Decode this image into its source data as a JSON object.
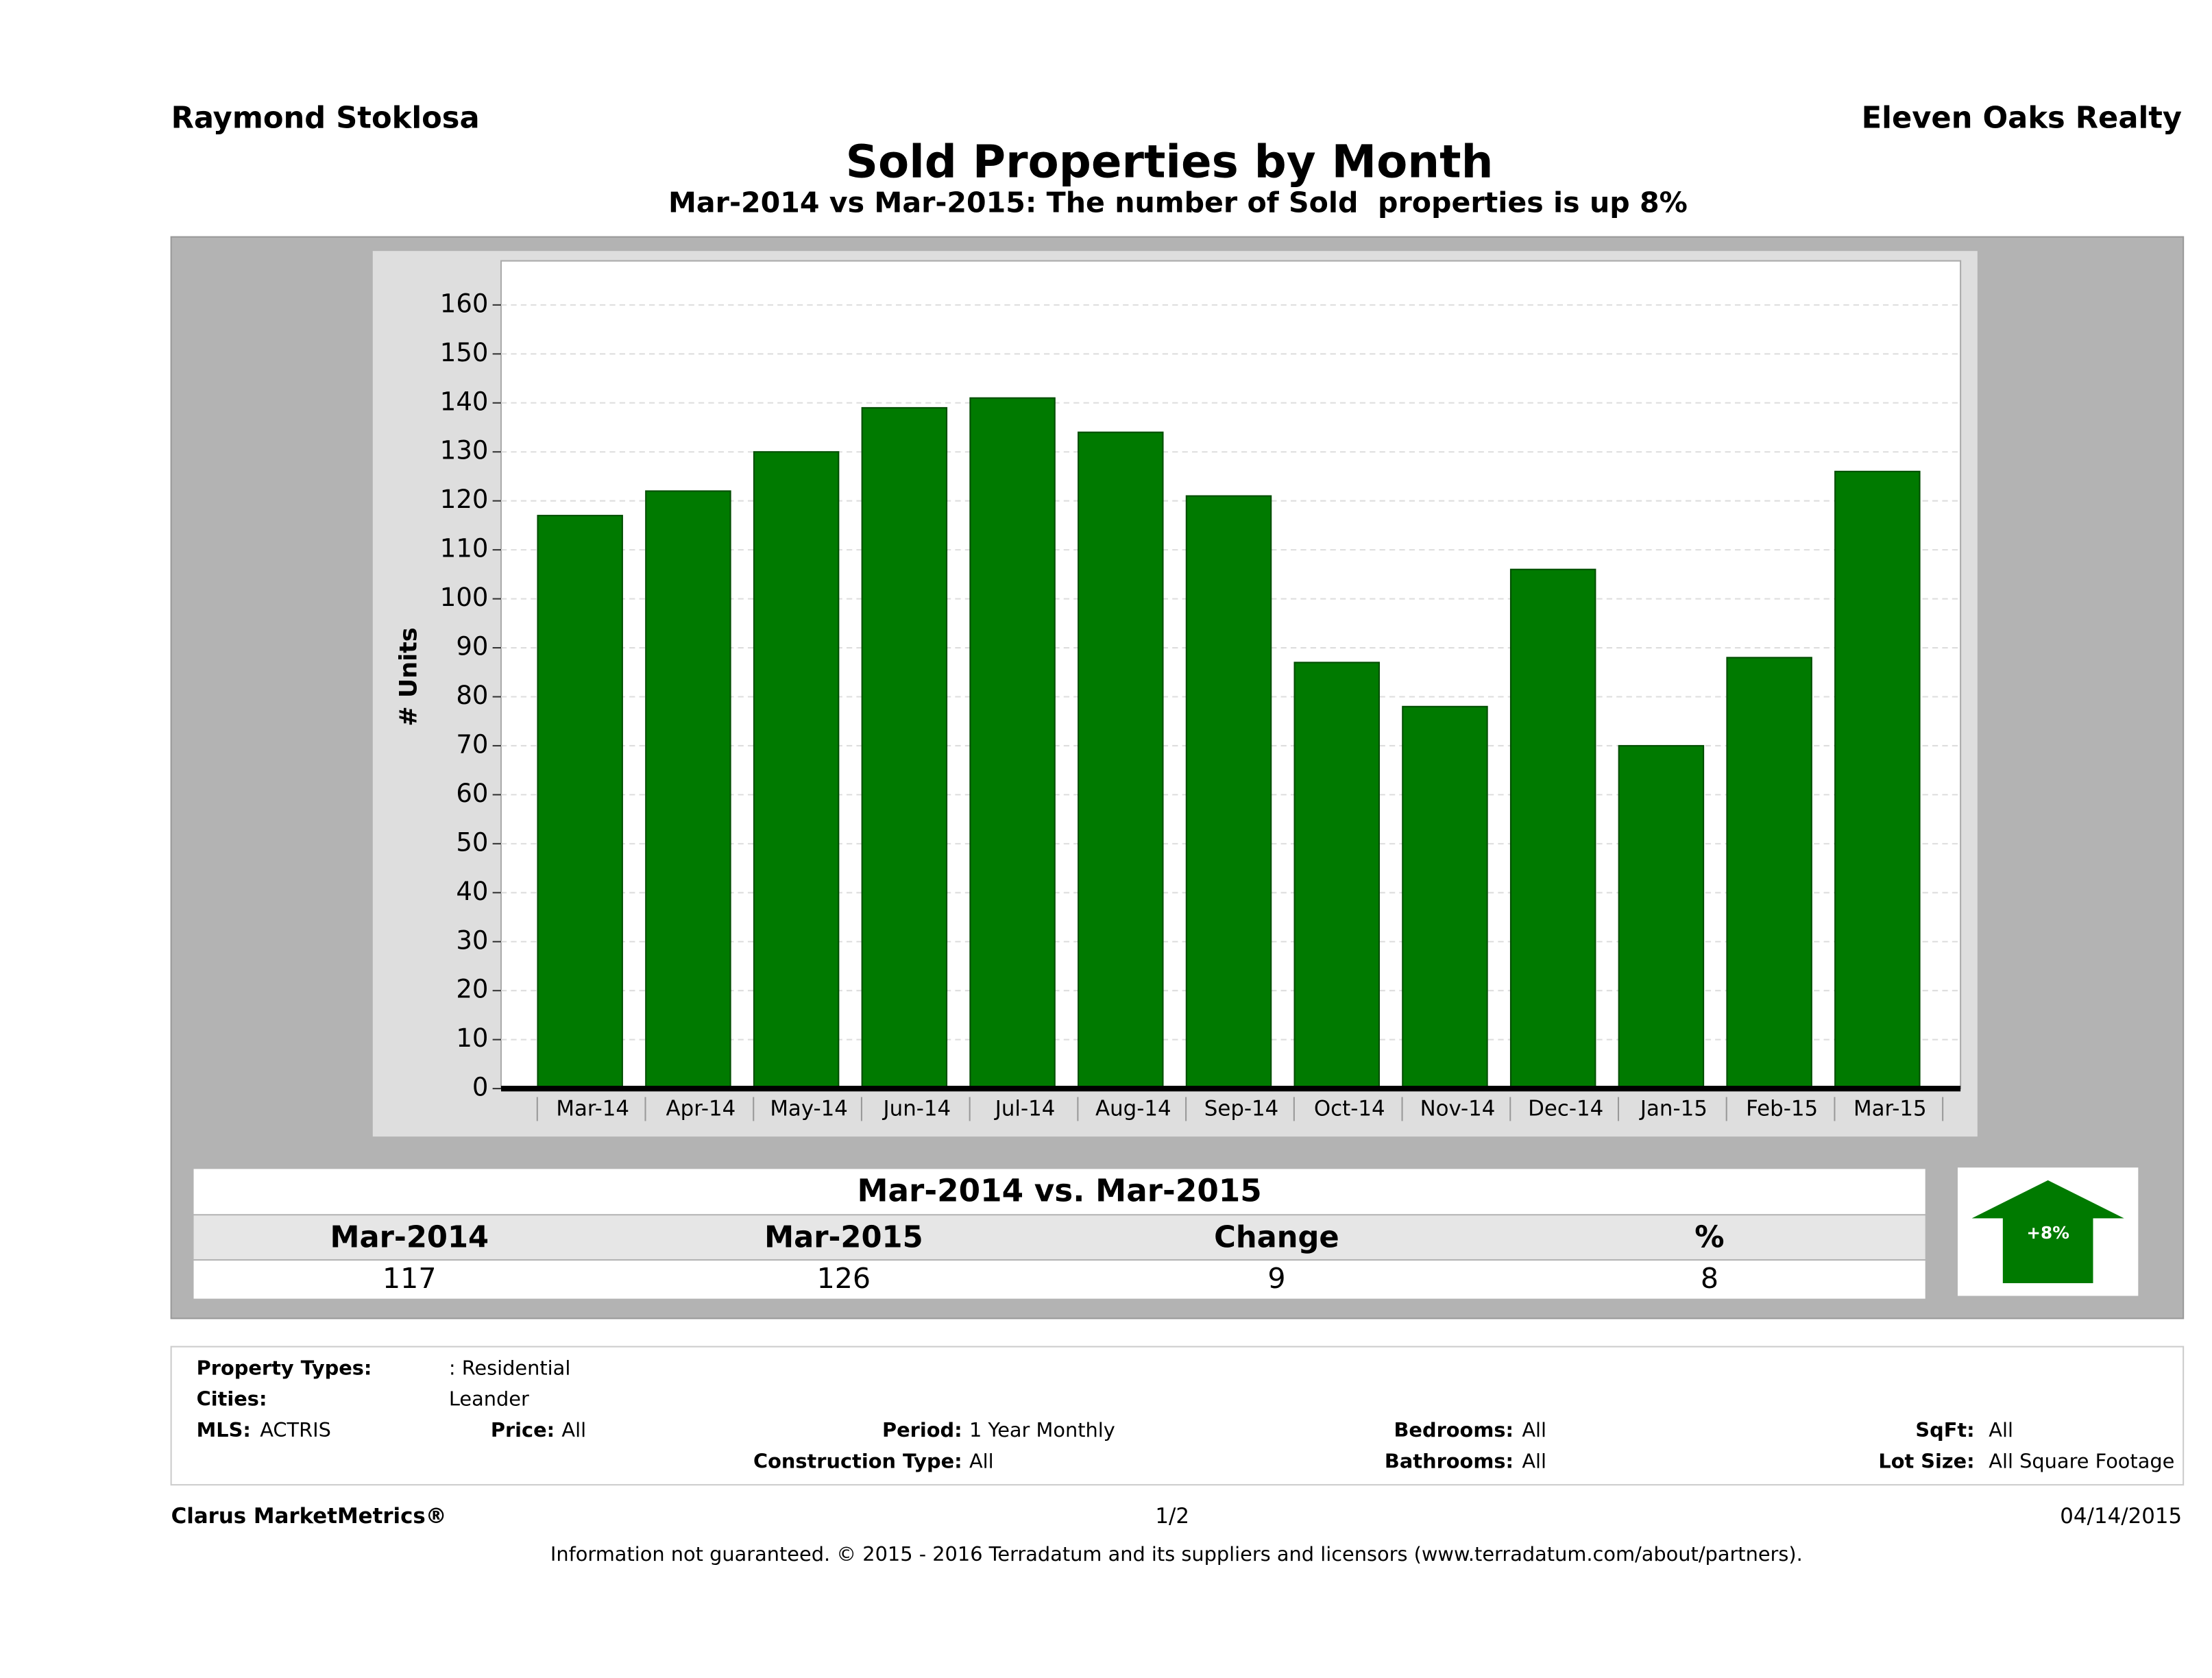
{
  "header": {
    "agent": "Raymond Stoklosa",
    "company": "Eleven Oaks Realty"
  },
  "chart_data": {
    "type": "bar",
    "title": "Sold Properties by Month",
    "subtitle": "Mar-2014 vs Mar-2015: The number of Sold  properties is up 8%",
    "y_label": "# Units",
    "categories": [
      "Mar-14",
      "Apr-14",
      "May-14",
      "Jun-14",
      "Jul-14",
      "Aug-14",
      "Sep-14",
      "Oct-14",
      "Nov-14",
      "Dec-14",
      "Jan-15",
      "Feb-15",
      "Mar-15"
    ],
    "values": [
      117,
      122,
      130,
      139,
      141,
      134,
      121,
      87,
      78,
      106,
      70,
      88,
      126
    ],
    "color": "#007a00",
    "ylim": [
      0,
      169
    ],
    "yticks": [
      0,
      10,
      20,
      30,
      40,
      50,
      60,
      70,
      80,
      90,
      100,
      110,
      120,
      130,
      140,
      150,
      160
    ],
    "grid": true
  },
  "summary": {
    "title": "Mar-2014 vs. Mar-2015",
    "columns": [
      "Mar-2014",
      "Mar-2015",
      "Change",
      "%"
    ],
    "values": [
      117,
      126,
      9,
      8
    ],
    "arrow_label": "+8%"
  },
  "filters": [
    {
      "label": "Property Types:",
      "value": ": Residential"
    },
    {
      "label": "Cities:",
      "value": "Leander"
    },
    {
      "label": "MLS:",
      "value": "ACTRIS"
    },
    {
      "label": "Price:",
      "value": "All"
    },
    {
      "label": "Period:",
      "value": "1 Year Monthly"
    },
    {
      "label": "Bedrooms:",
      "value": "All"
    },
    {
      "label": "SqFt:",
      "value": "All"
    },
    {
      "label": "Construction Type:",
      "value": "All"
    },
    {
      "label": "Bathrooms:",
      "value": "All"
    },
    {
      "label": "Lot Size:",
      "value": "All Square Footage"
    }
  ],
  "footer": {
    "brand": "Clarus MarketMetrics®",
    "page": "1/2",
    "date": "04/14/2015",
    "disclaimer": "Information not guaranteed. © 2015 - 2016 Terradatum and its suppliers and licensors (www.terradatum.com/about/partners)."
  }
}
